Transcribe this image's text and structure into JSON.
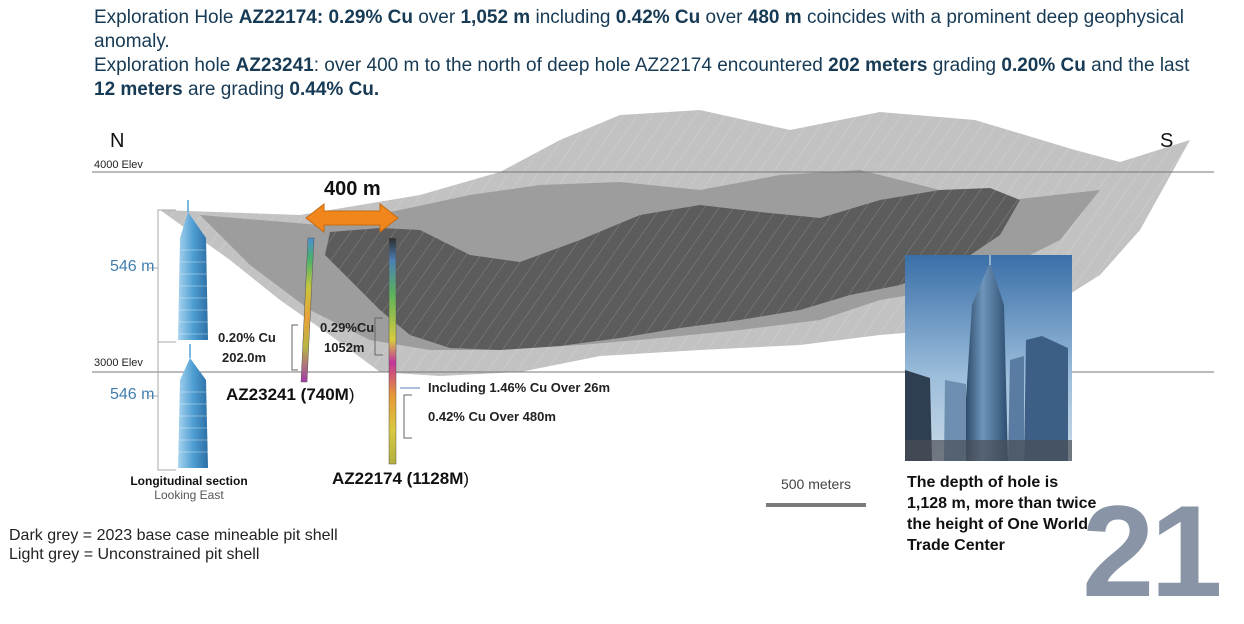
{
  "header": {
    "line1": [
      {
        "t": "Exploration Hole ",
        "b": false
      },
      {
        "t": "AZ22174: 0.29% Cu",
        "b": true
      },
      {
        "t": " over ",
        "b": false
      },
      {
        "t": "1,052 m",
        "b": true
      },
      {
        "t": " including ",
        "b": false
      },
      {
        "t": "0.42% Cu",
        "b": true
      },
      {
        "t": " over ",
        "b": false
      },
      {
        "t": "480 m",
        "b": true
      },
      {
        "t": " coincides with a prominent deep geophysical anomaly.",
        "b": false
      }
    ],
    "line2": [
      {
        "t": "Exploration hole ",
        "b": false
      },
      {
        "t": "AZ23241",
        "b": true
      },
      {
        "t": ": over 400 m to the north of deep hole AZ22174 encountered ",
        "b": false
      },
      {
        "t": "202 meters",
        "b": true
      },
      {
        "t": " grading ",
        "b": false
      },
      {
        "t": "0.20% Cu",
        "b": true
      },
      {
        "t": " and the last ",
        "b": false
      },
      {
        "t": "12 meters",
        "b": true
      },
      {
        "t": " are grading ",
        "b": false
      },
      {
        "t": "0.44% Cu.",
        "b": true
      }
    ]
  },
  "section": {
    "north": "N",
    "south": "S",
    "elev_top": "4000 Elev",
    "elev_bottom": "3000 Elev",
    "height_upper": "546 m",
    "height_lower": "546 m",
    "distance": "400 m",
    "caption_title": "Longitudinal section",
    "caption_sub": "Looking East"
  },
  "holes": {
    "az23241_grade": "0.20% Cu",
    "az23241_length": "202.0m",
    "az23241_name": "AZ23241 (740M",
    "az23241_suffix": ")",
    "az22174_grade": "0.29%Cu",
    "az22174_length": "1052m",
    "az22174_name": "AZ22174 (1128M",
    "az22174_suffix": ")",
    "including": "Including 1.46% Cu Over 26m",
    "interval": "0.42% Cu Over 480m"
  },
  "scale": "500 meters",
  "photo_caption": "The depth of hole is 1,128 m,  more than twice the height of One World Trade Center",
  "legend": {
    "dark": "Dark grey = 2023 base case mineable pit shell",
    "light": "Light grey = Unconstrained pit shell"
  },
  "page_number": "21",
  "colors": {
    "header_text": "#173a55",
    "arrow": "#f0861c",
    "dark_shell": "#5a5a5a",
    "light_shell": "#bdbdbd",
    "tower": "#5aa6d6",
    "page_number": "#8995a6"
  }
}
